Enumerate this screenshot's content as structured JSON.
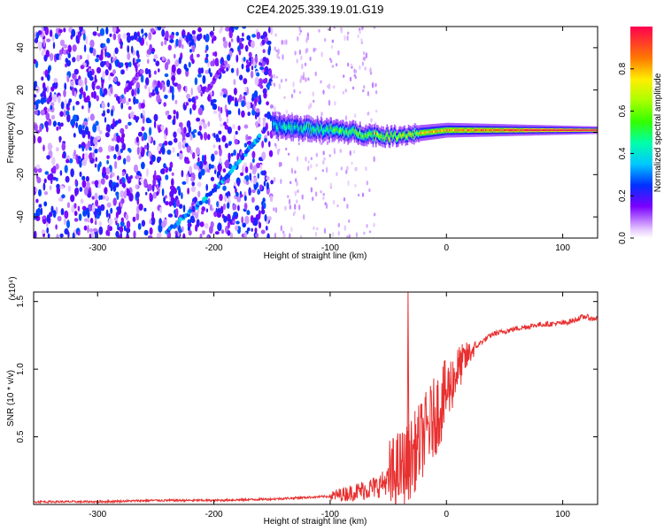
{
  "title": "C2E4.2025.339.19.01.G19",
  "chart_data": [
    {
      "type": "heatmap",
      "name": "spectrogram",
      "xlabel": "Height of straight line (km)",
      "ylabel": "Frequency (Hz)",
      "xlim": [
        -355,
        130
      ],
      "ylim": [
        -50,
        50
      ],
      "xticks": [
        -300,
        -200,
        -100,
        0,
        100
      ],
      "xtick_labels": [
        "-300",
        "-200",
        "-100",
        "0",
        "100"
      ],
      "yticks": [
        -40,
        -20,
        0,
        20,
        40
      ],
      "ytick_labels": [
        "-40",
        "-20",
        "0",
        "20",
        "40"
      ],
      "colorbar": {
        "label": "Normalized spectral amplitude",
        "range": [
          0,
          1
        ],
        "ticks": [
          0.0,
          0.2,
          0.4,
          0.6,
          0.8
        ],
        "tick_labels": [
          "0.0",
          "0.2",
          "0.4",
          "0.6",
          "0.8"
        ]
      },
      "features": [
        {
          "name": "noise-region",
          "x_range": [
            -355,
            -150
          ],
          "amplitude": 0.15
        },
        {
          "name": "descending-trace",
          "x": [
            -240,
            -215,
            -190,
            -170,
            -160
          ],
          "y": [
            -47,
            -35,
            -22,
            -8,
            -2
          ],
          "amplitude": 0.35
        },
        {
          "name": "ascending-trace-upper",
          "x": [
            -275,
            -262
          ],
          "y": [
            20,
            29
          ],
          "amplitude": 0.15
        },
        {
          "name": "ascending-trace-lower",
          "x": [
            -205,
            -190
          ],
          "y": [
            20,
            33
          ],
          "amplitude": 0.15
        },
        {
          "name": "main-signal-band",
          "x": [
            -150,
            -100,
            -50,
            0,
            50,
            100,
            130
          ],
          "y": [
            3,
            1,
            -2,
            1,
            1,
            1,
            1
          ],
          "amplitude": 0.9
        }
      ]
    },
    {
      "type": "line",
      "name": "snr",
      "xlabel": "Height of straight line (km)",
      "ylabel": "SNR (10 * v/v)",
      "y_scale_note": "(x10⁴)",
      "xlim": [
        -355,
        130
      ],
      "ylim": [
        0,
        1.57
      ],
      "xticks": [
        -300,
        -200,
        -100,
        0,
        100
      ],
      "xtick_labels": [
        "-300",
        "-200",
        "-100",
        "0",
        "100"
      ],
      "yticks": [
        0.5,
        1.0,
        1.5
      ],
      "ytick_labels": [
        "0.5",
        "1.0",
        "1.5"
      ],
      "color": "#e83030",
      "series": [
        {
          "name": "SNR",
          "x": [
            -355,
            -300,
            -250,
            -200,
            -150,
            -100,
            -80,
            -60,
            -50,
            -40,
            -35,
            -30,
            -20,
            -10,
            0,
            10,
            20,
            30,
            40,
            60,
            80,
            100,
            110,
            115,
            120,
            125,
            130
          ],
          "values": [
            0.02,
            0.02,
            0.03,
            0.03,
            0.04,
            0.06,
            0.09,
            0.13,
            0.18,
            0.26,
            0.28,
            0.35,
            0.5,
            0.65,
            0.82,
            1.0,
            1.12,
            1.2,
            1.26,
            1.3,
            1.33,
            1.34,
            1.36,
            1.38,
            1.39,
            1.37,
            1.38
          ]
        }
      ],
      "annotations": [
        {
          "name": "spike",
          "x": -33,
          "value": 1.57
        }
      ]
    }
  ]
}
